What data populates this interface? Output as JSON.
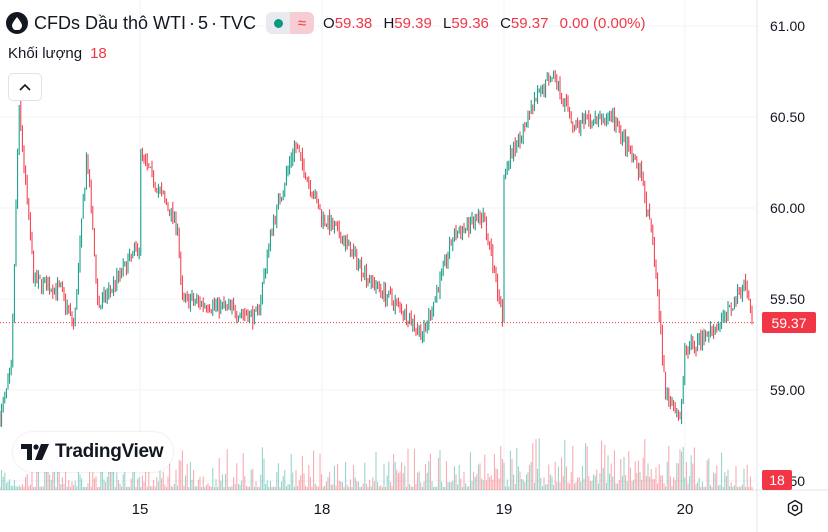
{
  "header": {
    "title": "CFDs Dầu thô WTI",
    "interval": "5",
    "source": "TVC",
    "open_label": "O",
    "open": "59.38",
    "high_label": "H",
    "high": "59.39",
    "low_label": "L",
    "low": "59.36",
    "close_label": "C",
    "close": "59.37",
    "change": "0.00 (0.00%)",
    "icons": {
      "symbol": "drop-icon",
      "market_status": "dot-icon",
      "delayed": "wave-icon"
    }
  },
  "volume": {
    "label": "Khối lượng",
    "value": "18"
  },
  "logo": {
    "text": "TradingView"
  },
  "price_axis": {
    "last_price_label": "59.37",
    "volume_label": "18"
  },
  "colors": {
    "up": "#089981",
    "down": "#f23645",
    "grid": "#f0f3fa",
    "text": "#131722"
  },
  "chart_data": {
    "type": "candlestick",
    "symbol": "CFDs Dầu thô WTI",
    "interval": "5",
    "y_ticks": [
      61.0,
      60.5,
      60.0,
      59.5,
      59.0,
      58.5
    ],
    "ylim": [
      58.5,
      61.05
    ],
    "x_ticks": [
      "15",
      "18",
      "19",
      "20"
    ],
    "last_price": 59.37,
    "grid": true,
    "price_path": [
      {
        "x": "start",
        "y": 58.85
      },
      {
        "x": 0.015,
        "y": 59.1
      },
      {
        "x": 0.025,
        "y": 60.55
      },
      {
        "x": 0.045,
        "y": 59.6
      },
      {
        "x": 0.08,
        "y": 59.55
      },
      {
        "x": 0.098,
        "y": 59.35
      },
      {
        "x": 0.115,
        "y": 60.3
      },
      {
        "x": 0.13,
        "y": 59.45
      },
      {
        "x": "15",
        "y": 59.8
      },
      {
        "x": 0.185,
        "y": 60.3
      },
      {
        "x": 0.235,
        "y": 59.9
      },
      {
        "x": 0.24,
        "y": 59.5
      },
      {
        "x": 0.3,
        "y": 59.45
      },
      {
        "x": 0.34,
        "y": 59.4
      },
      {
        "x": 0.36,
        "y": 59.9
      },
      {
        "x": 0.39,
        "y": 60.35
      },
      {
        "x": "18",
        "y": 59.95
      },
      {
        "x": 0.45,
        "y": 59.85
      },
      {
        "x": 0.49,
        "y": 59.6
      },
      {
        "x": 0.53,
        "y": 59.45
      },
      {
        "x": 0.56,
        "y": 59.3
      },
      {
        "x": 0.6,
        "y": 59.85
      },
      {
        "x": 0.64,
        "y": 59.95
      },
      {
        "x": 0.665,
        "y": 59.4
      },
      {
        "x": "19",
        "y": 60.2
      },
      {
        "x": 0.71,
        "y": 60.6
      },
      {
        "x": 0.73,
        "y": 60.75
      },
      {
        "x": 0.76,
        "y": 60.45
      },
      {
        "x": 0.81,
        "y": 60.5
      },
      {
        "x": 0.85,
        "y": 60.15
      },
      {
        "x": 0.865,
        "y": 59.75
      },
      {
        "x": 0.88,
        "y": 59.0
      },
      {
        "x": 0.9,
        "y": 58.85
      },
      {
        "x": "20",
        "y": 59.2
      },
      {
        "x": 0.96,
        "y": 59.4
      },
      {
        "x": 0.985,
        "y": 59.6
      },
      {
        "x": "end",
        "y": 59.37
      }
    ]
  }
}
